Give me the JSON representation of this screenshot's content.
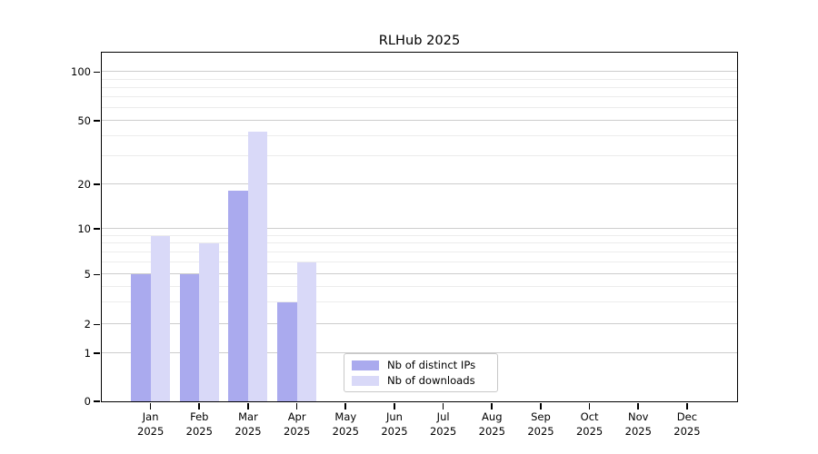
{
  "title": "RLHub 2025",
  "chart_data": {
    "type": "bar",
    "title": "RLHub 2025",
    "categories": [
      "Jan",
      "Feb",
      "Mar",
      "Apr",
      "May",
      "Jun",
      "Jul",
      "Aug",
      "Sep",
      "Oct",
      "Nov",
      "Dec"
    ],
    "x_year_line": "2025",
    "series": [
      {
        "name": "Nb of distinct IPs",
        "color": "#aaaaee",
        "values": [
          5,
          5,
          18,
          3,
          0,
          0,
          0,
          0,
          0,
          0,
          0,
          0
        ]
      },
      {
        "name": "Nb of downloads",
        "color": "#d9d9f8",
        "values": [
          9,
          8,
          43,
          6,
          0,
          0,
          0,
          0,
          0,
          0,
          0,
          0
        ]
      }
    ],
    "y_axis": {
      "scale": "asinh-like (log decades, compressed 0-1 linear segment)",
      "tick_values": [
        0,
        1,
        2,
        5,
        10,
        20,
        50,
        100
      ],
      "tick_labels": [
        "0",
        "1",
        "2",
        "5",
        "10",
        "20",
        "50",
        "100"
      ],
      "minor_gridline_values": [
        3,
        4,
        6,
        7,
        8,
        9,
        30,
        40,
        60,
        70,
        80,
        90
      ]
    },
    "xlabel": "",
    "ylabel": "",
    "grid": "on",
    "legend_position": "inside-bottom-center",
    "colors": {
      "major_grid": "#cdcdcd",
      "minor_grid": "#ececec",
      "axis_frame": "#000000",
      "background": "#ffffff"
    }
  }
}
